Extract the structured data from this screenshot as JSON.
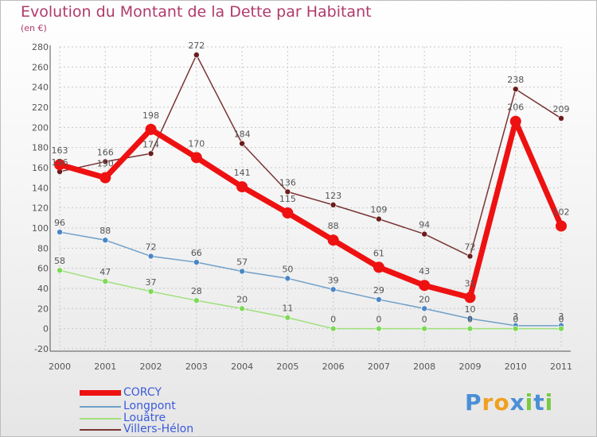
{
  "header": {
    "title": "Evolution du Montant de la Dette par Habitant",
    "subtitle": "(en €)"
  },
  "colors": {
    "title": "#b03a6a",
    "axis": "#555555",
    "grid": "#c8c8c8"
  },
  "chart_data": {
    "type": "line",
    "title": "Evolution du Montant de la Dette par Habitant",
    "subtitle": "(en €)",
    "xlabel": "",
    "ylabel": "",
    "x": [
      "2000",
      "2001",
      "2002",
      "2003",
      "2004",
      "2005",
      "2006",
      "2007",
      "2008",
      "2009",
      "2010",
      "2011"
    ],
    "ylim": [
      -20,
      280
    ],
    "yticks": [
      -20,
      0,
      20,
      40,
      60,
      80,
      100,
      120,
      140,
      160,
      180,
      200,
      220,
      240,
      260,
      280
    ],
    "grid": true,
    "legend_position": "bottom-left",
    "series": [
      {
        "name": "CORCY",
        "values": [
          163,
          150,
          198,
          170,
          141,
          115,
          88,
          61,
          43,
          31,
          206,
          102
        ],
        "labels": [
          "163",
          "150",
          "198",
          "170",
          "141",
          "115",
          "88",
          "61",
          "43",
          "31",
          "206",
          "102"
        ],
        "color": "#ee1111",
        "marker": "#ee1111",
        "width": 7,
        "radius": 7
      },
      {
        "name": "Longpont",
        "values": [
          96,
          88,
          72,
          66,
          57,
          50,
          39,
          29,
          20,
          10,
          3,
          3
        ],
        "labels": [
          "96",
          "88",
          "72",
          "66",
          "57",
          "50",
          "39",
          "29",
          "20",
          "10",
          "3",
          "3"
        ],
        "color": "#6fa0c8",
        "marker": "#4a86c6",
        "width": 1.5,
        "radius": 3.5
      },
      {
        "name": "Louâtre",
        "values": [
          58,
          47,
          37,
          28,
          20,
          11,
          0,
          0,
          0,
          0,
          0,
          0
        ],
        "labels": [
          "58",
          "47",
          "37",
          "28",
          "20",
          "11",
          "0",
          "0",
          "0",
          "0",
          "0",
          "0"
        ],
        "color": "#9ee07a",
        "marker": "#7ed957",
        "width": 1.5,
        "radius": 3.5
      },
      {
        "name": "Villers-Hélon",
        "values": [
          156,
          166,
          174,
          272,
          184,
          136,
          123,
          109,
          94,
          72,
          238,
          209
        ],
        "labels": [
          "156",
          "166",
          "174",
          "272",
          "184",
          "136",
          "123",
          "109",
          "94",
          "72",
          "238",
          "209"
        ],
        "color": "#7a3434",
        "marker": "#6b1c1c",
        "width": 1.5,
        "radius": 3.5
      }
    ]
  },
  "legend": {
    "items": [
      {
        "label": "CORCY"
      },
      {
        "label": "Longpont"
      },
      {
        "label": "Louâtre"
      },
      {
        "label": "Villers-Hélon"
      }
    ]
  },
  "logo": {
    "text": "Proxiti",
    "letters": [
      {
        "ch": "P",
        "color": "#4a8fd6"
      },
      {
        "ch": "r",
        "color": "#f0a020"
      },
      {
        "ch": "o",
        "color": "#f0a020"
      },
      {
        "ch": "x",
        "color": "#4a8fd6"
      },
      {
        "ch": "i",
        "color": "#7ac943"
      },
      {
        "ch": "t",
        "color": "#4a8fd6"
      },
      {
        "ch": "i",
        "color": "#7ac943"
      }
    ]
  }
}
